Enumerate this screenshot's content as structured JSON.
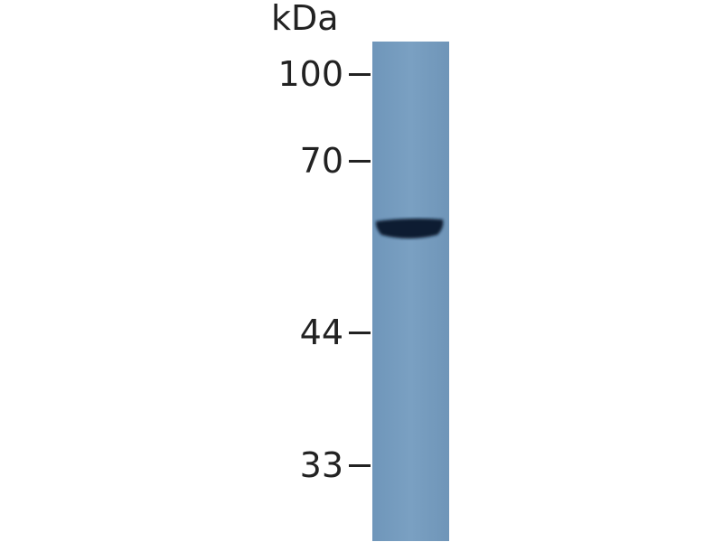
{
  "unit_label": "kDa",
  "markers": [
    {
      "label": "100",
      "kda": 100
    },
    {
      "label": "70",
      "kda": 70
    },
    {
      "label": "44",
      "kda": 44
    },
    {
      "label": "33",
      "kda": 33
    }
  ],
  "colors": {
    "lane": "#7399bc",
    "band": "#0f1e33",
    "text": "#222222"
  },
  "lanes": [
    {
      "bands": [
        {
          "approx_kda": 58,
          "intensity": "strong"
        }
      ]
    }
  ]
}
